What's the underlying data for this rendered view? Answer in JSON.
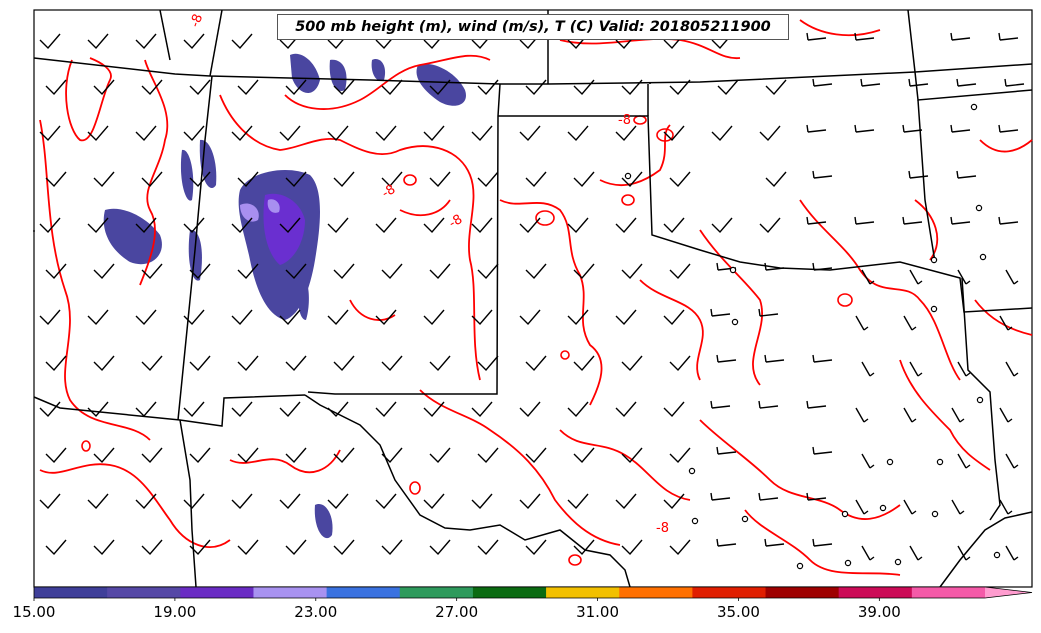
{
  "map": {
    "title": "500 mb height (m), wind (m/s), T (C) Valid: 201805211900",
    "contour_label": "-8"
  },
  "colorbar": {
    "tick_labels": [
      "15.00",
      "19.00",
      "23.00",
      "27.00",
      "31.00",
      "35.00",
      "39.00"
    ],
    "ticks": [
      15,
      19,
      23,
      27,
      31,
      35,
      39
    ],
    "range": [
      15,
      42
    ],
    "colors": [
      "#3f3f99",
      "#5548a6",
      "#6a2cc4",
      "#a892f0",
      "#3a72e0",
      "#2e9a5c",
      "#0b6b12",
      "#f2c000",
      "#ff7000",
      "#e01e00",
      "#9e0000",
      "#cc0b57",
      "#f45aa8",
      "#ff9ccf"
    ]
  },
  "colors": {
    "temperature_contour": "#ff0000",
    "boundaries": "#000000",
    "wind_barbs": "#000000",
    "shading_primary": "#4a46a0",
    "shading_core": "#6a2fd0",
    "shading_peak": "#a88ff0"
  },
  "legend_icons": [
    "wind-barb-icon",
    "calm-circle-icon"
  ]
}
